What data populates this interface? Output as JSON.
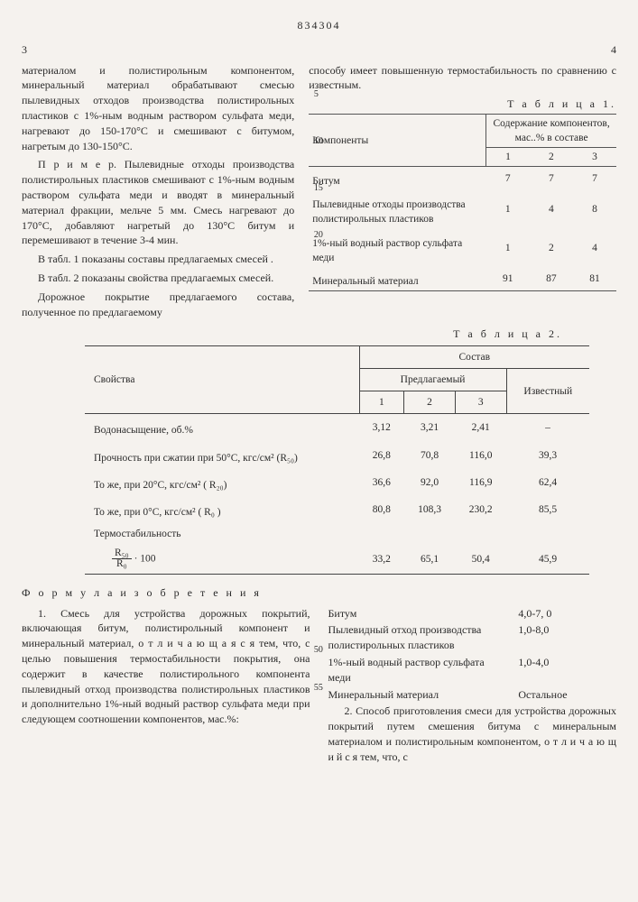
{
  "header_num": "834304",
  "page_left": "3",
  "page_right": "4",
  "left_para1": "материалом и полистирольным компонентом, минеральный материал обрабатывают смесью пылевидных отходов производства полистирольных пластиков с 1%-ным водным раствором сульфата меди, нагревают до 150-170°С и смешивают с битумом, нагретым до 130-150°С.",
  "left_para2": "П р и м е р. Пылевидные отходы производства полистирольных пластиков смешивают с 1%-ным водным раствором сульфата меди и вводят в минеральный материал фракции, мельче 5 мм. Смесь нагревают до 170°С, добавляют нагретый до 130°С битум и перемешивают в течение 3-4 мин.",
  "left_para3": "В табл. 1 показаны составы предлагаемых смесей .",
  "left_para4": "В табл. 2 показаны свойства предлагаемых смесей.",
  "left_para5": "Дорожное покрытие предлагаемого состава, полученное по предлагаемому",
  "right_para1": "способу имеет повышенную термостабильность по сравнению с известным.",
  "ln": {
    "5": "5",
    "10": "10",
    "15": "15",
    "20": "20",
    "50": "50",
    "55": "55"
  },
  "t1_label": "Т а б л и ц а 1.",
  "t1": {
    "h_comp": "Компоненты",
    "h_cont": "Содержание компонентов, мас..% в составе",
    "c1": "1",
    "c2": "2",
    "c3": "3",
    "rows": [
      {
        "n": "Битум",
        "v": [
          "7",
          "7",
          "7"
        ]
      },
      {
        "n": "Пылевидные отходы производства полистирольных пластиков",
        "v": [
          "1",
          "4",
          "8"
        ]
      },
      {
        "n": "1%-ный водный раствор сульфата меди",
        "v": [
          "1",
          "2",
          "4"
        ]
      },
      {
        "n": "Минеральный материал",
        "v": [
          "91",
          "87",
          "81"
        ]
      }
    ]
  },
  "t2_label": "Т а б л и ц а 2.",
  "t2": {
    "h_prop": "Свойства",
    "h_comp": "Состав",
    "h_pred": "Предлагаемый",
    "h_izv": "Известный",
    "c1": "1",
    "c2": "2",
    "c3": "3",
    "rows": [
      {
        "n": "Водонасыщение, об.%",
        "v": [
          "3,12",
          "3,21",
          "2,41",
          "–"
        ]
      },
      {
        "n": "Прочность при сжатии при 50°С, кгс/см² (R₅₀)",
        "v": [
          "26,8",
          "70,8",
          "116,0",
          "39,3"
        ]
      },
      {
        "n": "То же, при 20°С, кгс/см² ( R₂₀)",
        "v": [
          "36,6",
          "92,0",
          "116,9",
          "62,4"
        ]
      },
      {
        "n": "То же, при 0°С, кгс/см² ( R₀ )",
        "v": [
          "80,8",
          "108,3",
          "230,2",
          "85,5"
        ]
      }
    ],
    "thermo_label": "Термостабильность",
    "thermo_frac_n": "R₅₀",
    "thermo_frac_d": "R₀",
    "thermo_mult": "· 100",
    "thermo_v": [
      "33,2",
      "65,1",
      "50,4",
      "45,9"
    ]
  },
  "formula_h": "Ф о р м у л а   и з о б р е т е н и я",
  "claim1": "1. Смесь для устройства дорожных покрытий, включающая битум, полистирольный компонент и минеральный материал, о т л и ч а ю щ а я с я тем, что, с целью повышения термостабильности покрытия, она содержит в качестве полистирольного компонента пылевидный отход производства полистирольных пластиков и дополнительно 1%-ный водный раствор сульфата меди при следующем соотношении компонентов, мас.%:",
  "ing": [
    {
      "n": "Битум",
      "v": "4,0-7, 0"
    },
    {
      "n": "Пылевидный отход производства полистирольных пластиков",
      "v": "1,0-8,0"
    },
    {
      "n": "1%-ный водный раствор сульфата меди",
      "v": "1,0-4,0"
    },
    {
      "n": "Минеральный материал",
      "v": "Остальное"
    }
  ],
  "claim2": "2. Способ приготовления смеси для устройства дорожных покрытий путем смешения битума с минеральным материалом и полистирольным компонентом, о т л и ч а ю щ и й с я тем, что, с"
}
